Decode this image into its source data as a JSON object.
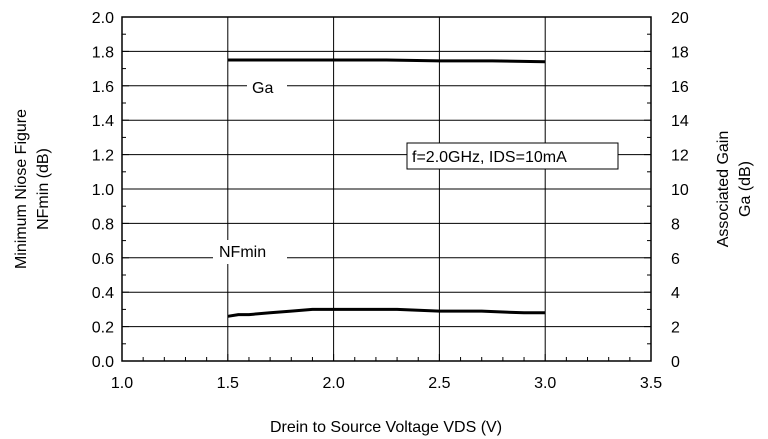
{
  "chart_data": {
    "type": "line",
    "title": "",
    "xlabel": "Drein to Source Voltage  VDS (V)",
    "ylabel_left_line1": "Minimum Niose Figure",
    "ylabel_left_line2": "NFmin (dB)",
    "ylabel_right_line1": "Associated Gain",
    "ylabel_right_line2": "Ga (dB)",
    "xlim": [
      1.0,
      3.5
    ],
    "ylim_left": [
      0.0,
      2.0
    ],
    "ylim_right": [
      0,
      20
    ],
    "x_ticks": [
      "1.0",
      "1.5",
      "2.0",
      "2.5",
      "3.0",
      "3.5"
    ],
    "y_left_ticks": [
      "0.0",
      "0.2",
      "0.4",
      "0.6",
      "0.8",
      "1.0",
      "1.2",
      "1.4",
      "1.6",
      "1.8",
      "2.0"
    ],
    "y_right_ticks": [
      "0",
      "2",
      "4",
      "6",
      "8",
      "10",
      "12",
      "14",
      "16",
      "18",
      "20"
    ],
    "grid": true,
    "series": [
      {
        "name": "Ga",
        "axis": "right",
        "x": [
          1.5,
          1.75,
          2.0,
          2.25,
          2.5,
          2.75,
          3.0
        ],
        "values": [
          17.5,
          17.5,
          17.5,
          17.5,
          17.45,
          17.45,
          17.4
        ]
      },
      {
        "name": "NFmin",
        "axis": "left",
        "x": [
          1.5,
          1.55,
          1.6,
          1.7,
          1.8,
          1.9,
          2.0,
          2.1,
          2.2,
          2.3,
          2.4,
          2.5,
          2.6,
          2.7,
          2.8,
          2.9,
          3.0
        ],
        "values": [
          0.26,
          0.27,
          0.27,
          0.28,
          0.29,
          0.3,
          0.3,
          0.3,
          0.3,
          0.3,
          0.295,
          0.29,
          0.29,
          0.29,
          0.285,
          0.28,
          0.28
        ]
      }
    ],
    "annotation": "f=2.0GHz, IDS=10mA"
  }
}
